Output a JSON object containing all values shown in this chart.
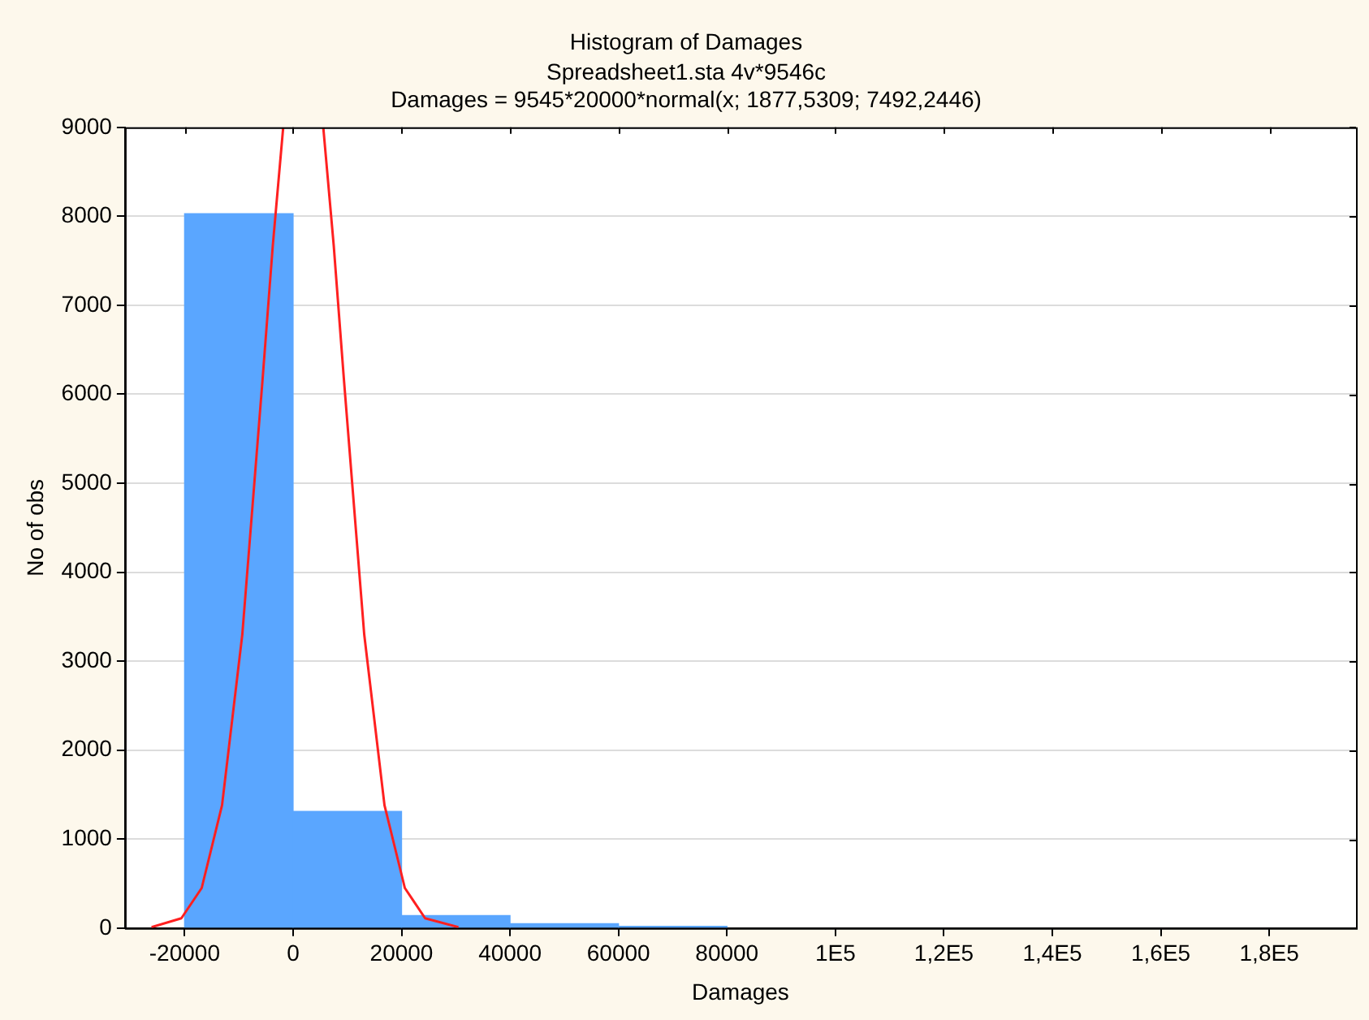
{
  "chart_data": {
    "type": "histogram",
    "title": "Histogram of Damages",
    "subtitle": "Spreadsheet1.sta 4v*9546c",
    "annotations": [
      "Damages = 9545*20000*normal(x; 1877,5309; 7492,2446)"
    ],
    "xlabel": "Damages",
    "ylabel": "No of obs",
    "bins": [
      -20000,
      0,
      20000,
      40000,
      60000,
      80000
    ],
    "values": [
      8030,
      1310,
      140,
      50,
      20
    ],
    "color": "#5aa6ff",
    "series": [
      {
        "type": "line",
        "color": "#ff2020",
        "x": [
          -26100,
          -20600,
          -16850,
          -13100,
          -9360,
          -5620,
          -3740,
          -1820,
          1880,
          5570,
          7500,
          9370,
          13120,
          16860,
          20610,
          24350,
          30500
        ],
        "values": [
          10,
          110,
          450,
          1380,
          3300,
          6170,
          7670,
          9000,
          null,
          9000,
          7670,
          6170,
          3300,
          1380,
          450,
          110,
          10
        ]
      }
    ],
    "xlim": [
      -31000,
      196000
    ],
    "xticks": [
      -20000,
      0,
      20000,
      40000,
      60000,
      80000,
      {
        "value": 100000,
        "label": "1E5"
      },
      {
        "value": 120000,
        "label": "1,2E5"
      },
      {
        "value": 140000,
        "label": "1,4E5"
      },
      {
        "value": 160000,
        "label": "1,6E5"
      },
      {
        "value": 180000,
        "label": "1,8E5"
      }
    ],
    "ylim": [
      0,
      9000
    ],
    "yticks": [
      0,
      1000,
      2000,
      3000,
      4000,
      5000,
      6000,
      7000,
      8000,
      9000
    ],
    "grid": "y",
    "legend": false,
    "marker": "none",
    "line_style": "solid"
  }
}
